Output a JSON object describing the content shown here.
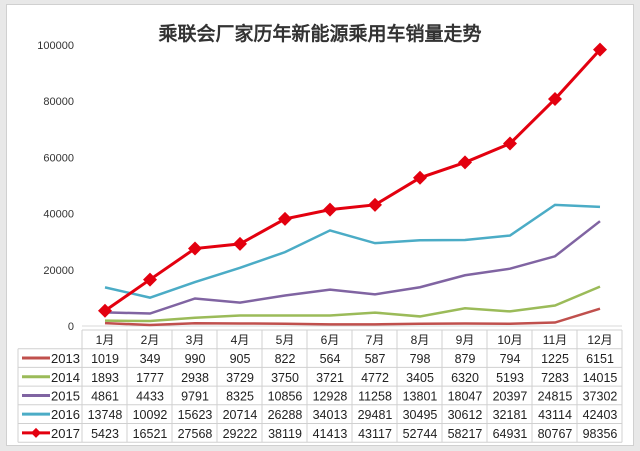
{
  "chart_data": {
    "type": "line",
    "title": "乘联会厂家历年新能源乘用车销量走势",
    "categories": [
      "1月",
      "2月",
      "3月",
      "4月",
      "5月",
      "6月",
      "7月",
      "8月",
      "9月",
      "10月",
      "11月",
      "12月"
    ],
    "ylim": [
      0,
      100000
    ],
    "yticks": [
      0,
      20000,
      40000,
      60000,
      80000,
      100000
    ],
    "grid": false,
    "legend": "data-table-bottom",
    "series": [
      {
        "name": "2013",
        "color": "#c0504d",
        "marker": "none",
        "values": [
          1019,
          349,
          990,
          905,
          822,
          564,
          587,
          798,
          879,
          794,
          1225,
          6151
        ]
      },
      {
        "name": "2014",
        "color": "#9bbb59",
        "marker": "none",
        "values": [
          1893,
          1777,
          2938,
          3729,
          3750,
          3721,
          4772,
          3405,
          6320,
          5193,
          7283,
          14015
        ]
      },
      {
        "name": "2015",
        "color": "#8064a2",
        "marker": "none",
        "values": [
          4861,
          4433,
          9791,
          8325,
          10856,
          12928,
          11258,
          13801,
          18047,
          20397,
          24815,
          37302
        ]
      },
      {
        "name": "2016",
        "color": "#4bacc6",
        "marker": "none",
        "values": [
          13748,
          10092,
          15623,
          20714,
          26288,
          34013,
          29481,
          30495,
          30612,
          32181,
          43114,
          42403
        ]
      },
      {
        "name": "2017",
        "color": "#e3000f",
        "marker": "diamond",
        "values": [
          5423,
          16521,
          27568,
          29222,
          38119,
          41413,
          43117,
          52744,
          58217,
          64931,
          80767,
          98356
        ]
      }
    ]
  }
}
